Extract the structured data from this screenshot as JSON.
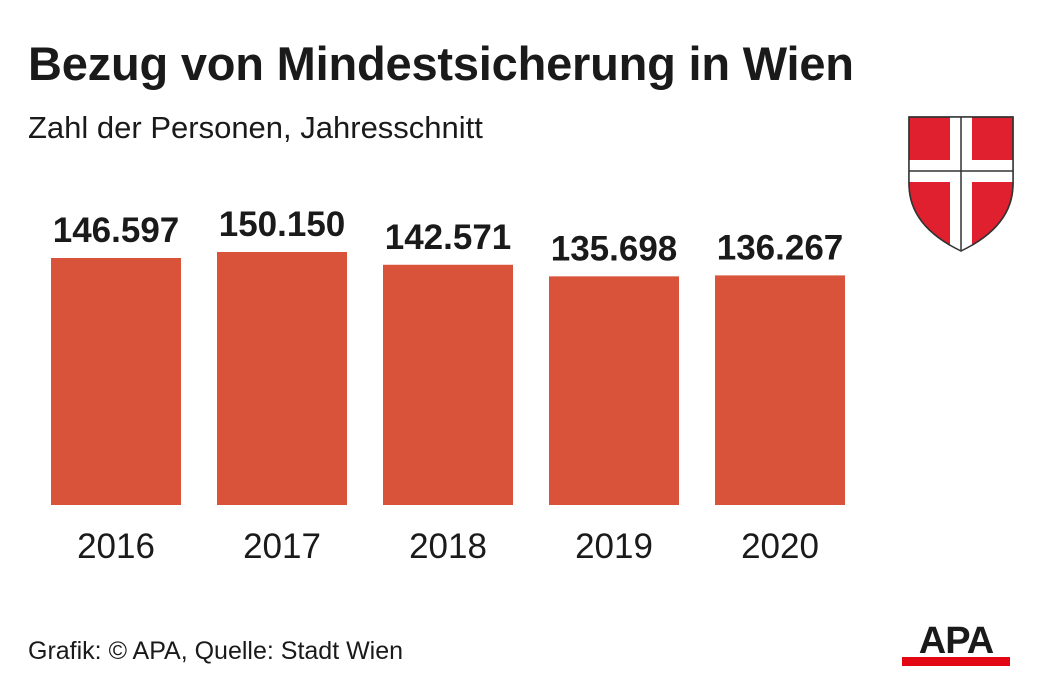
{
  "header": {
    "title": "Bezug von Mindestsicherung in Wien",
    "subtitle": "Zahl der Personen, Jahresschnitt"
  },
  "footer": {
    "source": "Grafik: © APA, Quelle: Stadt Wien",
    "logo_text": "APA"
  },
  "colors": {
    "bar": "#d9533a",
    "crest_red": "#e0202e",
    "logo_red": "#e30613",
    "text": "#1a1a1a"
  },
  "chart_data": {
    "type": "bar",
    "categories": [
      "2016",
      "2017",
      "2018",
      "2019",
      "2020"
    ],
    "values": [
      146597,
      150150,
      142571,
      135698,
      136267
    ],
    "value_labels": [
      "146.597",
      "150.150",
      "142.571",
      "135.698",
      "136.267"
    ],
    "title": "Bezug von Mindestsicherung in Wien",
    "subtitle": "Zahl der Personen, Jahresschnitt",
    "xlabel": "",
    "ylabel": "",
    "ylim": [
      0,
      150150
    ],
    "grid": false,
    "legend": "none"
  }
}
